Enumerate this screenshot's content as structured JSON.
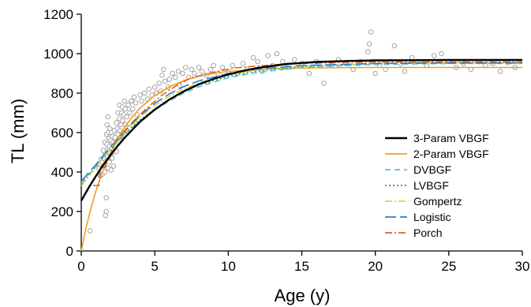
{
  "chart_data": {
    "type": "scatter",
    "xlabel": "Age (y)",
    "ylabel": "TL (mm)",
    "xlim": [
      0,
      30
    ],
    "ylim": [
      0,
      1200
    ],
    "xticks": [
      0,
      5,
      10,
      15,
      20,
      25,
      30
    ],
    "yticks": [
      0,
      200,
      400,
      600,
      800,
      1000,
      1200
    ],
    "grid": false,
    "legend_position": "right",
    "series": [
      {
        "name": "3-Param VBGF",
        "color": "#000000",
        "dash": "solid",
        "x": [
          0,
          0.5,
          1,
          1.5,
          2,
          2.5,
          3,
          4,
          5,
          6,
          7,
          8,
          9,
          10,
          11,
          12,
          14,
          16,
          18,
          20,
          22,
          25,
          28,
          30
        ],
        "y": [
          255,
          320,
          380,
          436,
          487,
          535,
          578,
          655,
          717,
          768,
          810,
          845,
          872,
          895,
          913,
          928,
          948,
          958,
          963,
          966,
          967,
          968,
          968,
          968
        ]
      },
      {
        "name": "2-Param VBGF",
        "color": "#f0a020",
        "dash": "solid",
        "x": [
          0,
          0.3,
          0.6,
          1,
          1.5,
          2,
          2.5,
          3,
          3.5,
          4,
          5,
          6,
          7,
          8,
          9,
          10,
          12,
          14,
          16,
          20,
          25,
          30
        ],
        "y": [
          0,
          110,
          200,
          305,
          410,
          500,
          572,
          632,
          682,
          724,
          788,
          832,
          864,
          886,
          900,
          910,
          920,
          926,
          928,
          930,
          930,
          930
        ]
      },
      {
        "name": "DVBGF",
        "color": "#5fc0e0",
        "dash": "dashed",
        "x": [
          0,
          1,
          2,
          3,
          4,
          5,
          6,
          7,
          8,
          10,
          12,
          15,
          20,
          25,
          30
        ],
        "y": [
          345,
          430,
          520,
          595,
          660,
          715,
          760,
          800,
          832,
          878,
          905,
          930,
          945,
          950,
          950
        ]
      },
      {
        "name": "LVBGF",
        "color": "#20a060",
        "dash": "dotted",
        "x": [
          0,
          1,
          2,
          3,
          4,
          5,
          6,
          7,
          8,
          10,
          12,
          15,
          20,
          25,
          30
        ],
        "y": [
          340,
          428,
          518,
          598,
          665,
          720,
          768,
          808,
          840,
          885,
          912,
          935,
          950,
          955,
          955
        ]
      },
      {
        "name": "Gompertz",
        "color": "#e0d040",
        "dash": "dashdot",
        "x": [
          0,
          1,
          2,
          3,
          4,
          5,
          6,
          7,
          8,
          10,
          12,
          15,
          20,
          25,
          30
        ],
        "y": [
          330,
          425,
          520,
          605,
          678,
          738,
          785,
          822,
          852,
          893,
          918,
          938,
          950,
          955,
          955
        ]
      },
      {
        "name": "Logistic",
        "color": "#2a7ed0",
        "dash": "longdash",
        "x": [
          0,
          1,
          2,
          3,
          4,
          5,
          6,
          7,
          8,
          10,
          12,
          15,
          20,
          25,
          30
        ],
        "y": [
          355,
          438,
          528,
          612,
          686,
          748,
          796,
          834,
          862,
          900,
          922,
          940,
          950,
          953,
          953
        ]
      },
      {
        "name": "Porch",
        "color": "#e06020",
        "dash": "dashdot",
        "x": [
          0.8,
          1.2,
          1.3,
          1.6,
          2.1,
          2.2,
          3.2,
          3.3,
          4.3,
          4.4,
          5.3,
          5.4,
          6.4,
          6.5,
          7.4,
          7.5,
          8.4,
          8.5,
          9.4,
          9.5,
          10.4,
          10.5,
          11.5,
          12.5,
          14,
          16,
          18,
          20,
          22,
          25,
          30
        ],
        "y": [
          332,
          332,
          425,
          425,
          515,
          540,
          632,
          640,
          712,
          720,
          778,
          785,
          835,
          840,
          875,
          878,
          895,
          898,
          912,
          915,
          925,
          928,
          935,
          940,
          948,
          953,
          956,
          958,
          958,
          958,
          958
        ]
      }
    ],
    "observed_points": [
      [
        0.6,
        102
      ],
      [
        1.2,
        420
      ],
      [
        1.25,
        440
      ],
      [
        1.3,
        380
      ],
      [
        1.35,
        465
      ],
      [
        1.4,
        450
      ],
      [
        1.45,
        390
      ],
      [
        1.5,
        510
      ],
      [
        1.5,
        470
      ],
      [
        1.55,
        430
      ],
      [
        1.6,
        550
      ],
      [
        1.6,
        400
      ],
      [
        1.62,
        490
      ],
      [
        1.65,
        180
      ],
      [
        1.7,
        200
      ],
      [
        1.7,
        270
      ],
      [
        1.72,
        590
      ],
      [
        1.75,
        640
      ],
      [
        1.75,
        540
      ],
      [
        1.78,
        460
      ],
      [
        1.8,
        680
      ],
      [
        1.8,
        510
      ],
      [
        1.82,
        420
      ],
      [
        1.85,
        600
      ],
      [
        1.88,
        570
      ],
      [
        1.9,
        500
      ],
      [
        1.9,
        450
      ],
      [
        1.92,
        530
      ],
      [
        1.95,
        620
      ],
      [
        2.0,
        480
      ],
      [
        2.0,
        560
      ],
      [
        2.02,
        410
      ],
      [
        2.05,
        600
      ],
      [
        2.08,
        520
      ],
      [
        2.1,
        470
      ],
      [
        2.12,
        580
      ],
      [
        2.15,
        550
      ],
      [
        2.2,
        500
      ],
      [
        2.2,
        430
      ],
      [
        2.25,
        610
      ],
      [
        2.3,
        575
      ],
      [
        2.35,
        540
      ],
      [
        2.4,
        505
      ],
      [
        2.4,
        650
      ],
      [
        2.45,
        620
      ],
      [
        2.5,
        590
      ],
      [
        2.5,
        700
      ],
      [
        2.55,
        550
      ],
      [
        2.6,
        670
      ],
      [
        2.6,
        740
      ],
      [
        2.65,
        610
      ],
      [
        2.7,
        580
      ],
      [
        2.7,
        640
      ],
      [
        2.75,
        700
      ],
      [
        2.8,
        730
      ],
      [
        2.8,
        660
      ],
      [
        2.85,
        600
      ],
      [
        2.9,
        690
      ],
      [
        2.95,
        760
      ],
      [
        3.0,
        640
      ],
      [
        3.0,
        720
      ],
      [
        3.1,
        680
      ],
      [
        3.2,
        740
      ],
      [
        3.3,
        700
      ],
      [
        3.4,
        760
      ],
      [
        3.5,
        720
      ],
      [
        3.6,
        780
      ],
      [
        3.7,
        750
      ],
      [
        3.8,
        690
      ],
      [
        4.0,
        790
      ],
      [
        4.1,
        760
      ],
      [
        4.3,
        800
      ],
      [
        4.5,
        770
      ],
      [
        4.6,
        820
      ],
      [
        4.8,
        790
      ],
      [
        5.0,
        830
      ],
      [
        5.1,
        800
      ],
      [
        5.3,
        850
      ],
      [
        5.4,
        810
      ],
      [
        5.5,
        890
      ],
      [
        5.6,
        920
      ],
      [
        5.7,
        860
      ],
      [
        5.9,
        830
      ],
      [
        6.0,
        870
      ],
      [
        6.2,
        900
      ],
      [
        6.4,
        880
      ],
      [
        6.6,
        910
      ],
      [
        6.7,
        840
      ],
      [
        6.9,
        900
      ],
      [
        7.1,
        930
      ],
      [
        7.3,
        880
      ],
      [
        7.5,
        920
      ],
      [
        7.7,
        900
      ],
      [
        8.0,
        930
      ],
      [
        8.2,
        910
      ],
      [
        8.5,
        890
      ],
      [
        8.8,
        920
      ],
      [
        9.0,
        940
      ],
      [
        9.3,
        900
      ],
      [
        9.6,
        930
      ],
      [
        10.0,
        910
      ],
      [
        10.3,
        940
      ],
      [
        10.6,
        900
      ],
      [
        11.0,
        950
      ],
      [
        11.3,
        920
      ],
      [
        11.7,
        980
      ],
      [
        12.0,
        960
      ],
      [
        12.3,
        910
      ],
      [
        12.7,
        990
      ],
      [
        13.0,
        940
      ],
      [
        13.3,
        1000
      ],
      [
        13.7,
        960
      ],
      [
        14.0,
        930
      ],
      [
        14.5,
        970
      ],
      [
        15.0,
        950
      ],
      [
        15.5,
        900
      ],
      [
        16.0,
        960
      ],
      [
        16.5,
        850
      ],
      [
        17.0,
        940
      ],
      [
        17.5,
        970
      ],
      [
        18.0,
        950
      ],
      [
        18.5,
        920
      ],
      [
        19.0,
        960
      ],
      [
        19.5,
        1010
      ],
      [
        19.6,
        1050
      ],
      [
        19.7,
        1110
      ],
      [
        19.8,
        960
      ],
      [
        20.0,
        900
      ],
      [
        20.3,
        940
      ],
      [
        20.7,
        920
      ],
      [
        21.0,
        960
      ],
      [
        21.3,
        1040
      ],
      [
        21.7,
        950
      ],
      [
        22.0,
        910
      ],
      [
        22.5,
        980
      ],
      [
        23.0,
        960
      ],
      [
        23.5,
        940
      ],
      [
        24.0,
        990
      ],
      [
        24.5,
        1000
      ],
      [
        25.0,
        960
      ],
      [
        25.5,
        930
      ],
      [
        26.0,
        950
      ],
      [
        26.5,
        920
      ],
      [
        27.0,
        960
      ],
      [
        27.5,
        940
      ],
      [
        28.0,
        950
      ],
      [
        28.5,
        910
      ],
      [
        29.0,
        955
      ],
      [
        29.5,
        930
      ]
    ]
  }
}
